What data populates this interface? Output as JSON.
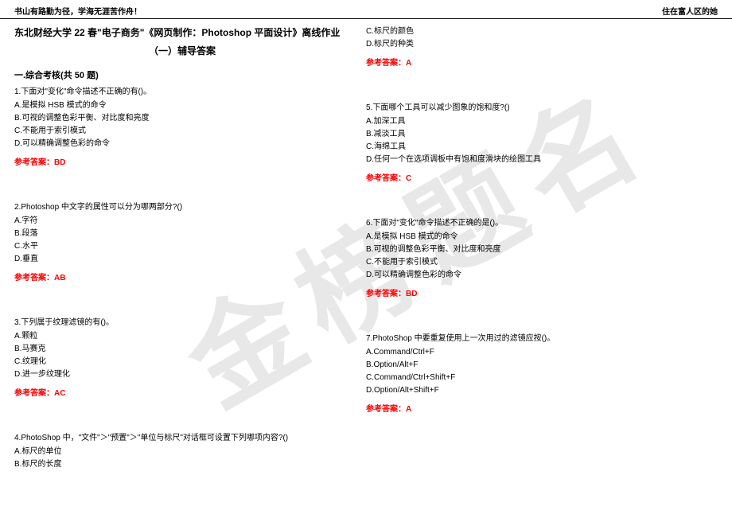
{
  "header": {
    "left": "书山有路勤为径，学海无涯苦作舟！",
    "right": "住在富人区的她"
  },
  "watermark": "金榜题名",
  "title": {
    "main": "东北财经大学 22 春\"电子商务\"《网页制作：Photoshop 平面设计》离线作业",
    "sub": "（一）辅导答案"
  },
  "section": "一.综合考核(共 50 题)",
  "q1": {
    "text": "1.下面对\"变化\"命令描述不正确的有()。",
    "a": "A.是模拟 HSB 模式的命令",
    "b": "B.可视的调整色彩平衡、对比度和亮度",
    "c": "C.不能用于索引模式",
    "d": "D.可以精确调整色彩的命令",
    "answer": "参考答案：BD"
  },
  "q2": {
    "text": "2.Photoshop 中文字的属性可以分为哪两部分?()",
    "a": "A.字符",
    "b": "B.段落",
    "c": "C.水平",
    "d": "D.垂直",
    "answer": "参考答案：AB"
  },
  "q3": {
    "text": "3.下列属于纹理滤镜的有()。",
    "a": "A.颗粒",
    "b": "B.马赛克",
    "c": "C.纹理化",
    "d": "D.进一步纹理化",
    "answer": "参考答案：AC"
  },
  "q4": {
    "text": "4.PhotoShop 中，\"文件\"＞\"预置\"＞\"单位与标尺\"对话框可设置下列哪项内容?()",
    "a": "A.标尺的单位",
    "b": "B.标尺的长度"
  },
  "q4cont": {
    "c": "C.标尺的颜色",
    "d": "D.标尺的种类",
    "answer": "参考答案：A"
  },
  "q5": {
    "text": "5.下面哪个工具可以减少图象的饱和度?()",
    "a": "A.加深工具",
    "b": "B.减淡工具",
    "c": "C.海绵工具",
    "d": "D.任何一个在选项调板中有饱和度滑块的绘图工具",
    "answer": "参考答案：C"
  },
  "q6": {
    "text": "6.下面对\"变化\"命令描述不正确的是()。",
    "a": "A.是模拟 HSB 模式的命令",
    "b": "B.可视的调整色彩平衡、对比度和亮度",
    "c": "C.不能用于索引模式",
    "d": "D.可以精确调整色彩的命令",
    "answer": "参考答案：BD"
  },
  "q7": {
    "text": "7.PhotoShop 中要重复使用上一次用过的滤镜应按()。",
    "a": "A.Command/Ctrl+F",
    "b": "B.Option/Alt+F",
    "c": "C.Command/Ctrl+Shift+F",
    "d": "D.Option/Alt+Shift+F",
    "answer": "参考答案：A"
  },
  "colors": {
    "answer_color": "#ff0000",
    "watermark_color": "#e8e8e8",
    "text_color": "#000000",
    "background": "#ffffff"
  }
}
